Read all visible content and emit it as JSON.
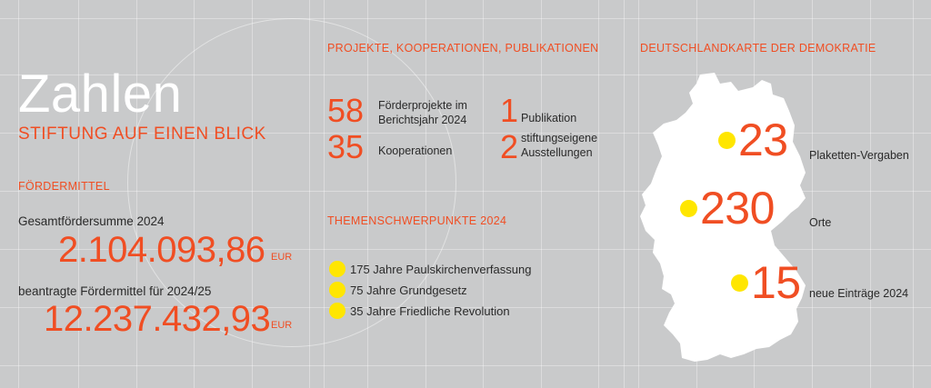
{
  "header": {
    "title": "Zahlen",
    "subtitle": "STIFTUNG AUF EINEN BLICK"
  },
  "funding": {
    "section_label": "FÖRDERMITTEL",
    "total_label": "Gesamtfördersumme 2024",
    "total_value": "2.104.093,86",
    "total_currency": "EUR",
    "requested_label": "beantragte Fördermittel für 2024/25",
    "requested_value": "12.237.432,93",
    "requested_currency": "EUR"
  },
  "projects": {
    "section_label": "PROJEKTE, KOOPERATIONEN, PUBLIKATIONEN",
    "items": [
      {
        "number": "58",
        "label_line1": "Förderprojekte im",
        "label_line2": "Berichtsjahr 2024"
      },
      {
        "number": "35",
        "label_line1": "Kooperationen",
        "label_line2": ""
      },
      {
        "number": "1",
        "label_line1": "Publikation",
        "label_line2": ""
      },
      {
        "number": "2",
        "label_line1": "stiftungseigene",
        "label_line2": "Ausstellungen"
      }
    ]
  },
  "themes": {
    "section_label": "THEMENSCHWERPUNKTE 2024",
    "items": [
      "175 Jahre Paulskirchenverfassung",
      "75 Jahre Grundgesetz",
      "35 Jahre Friedliche Revolution"
    ]
  },
  "map": {
    "section_label": "DEUTSCHLANDKARTE DER DEMOKRATIE",
    "stats": [
      {
        "number": "23",
        "label": "Plaketten-Vergaben"
      },
      {
        "number": "230",
        "label": "Orte"
      },
      {
        "number": "15",
        "label": "neue Einträge 2024"
      }
    ]
  },
  "colors": {
    "background": "#c9cacb",
    "accent": "#f04e23",
    "highlight": "#ffe600",
    "white": "#ffffff"
  }
}
